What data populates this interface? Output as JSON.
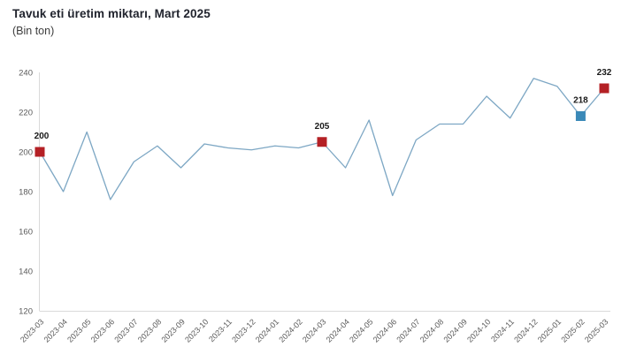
{
  "header": {
    "title": "Tavuk eti üretim miktarı, Mart 2025",
    "subtitle": "(Bin ton)"
  },
  "chart_data": {
    "type": "line",
    "title": "Tavuk eti üretim miktarı, Mart 2025",
    "unit_label": "(Bin ton)",
    "categories": [
      "2023-03",
      "2023-04",
      "2023-05",
      "2023-06",
      "2023-07",
      "2023-08",
      "2023-09",
      "2023-10",
      "2023-11",
      "2023-12",
      "2024-01",
      "2024-02",
      "2024-03",
      "2024-04",
      "2024-05",
      "2024-06",
      "2024-07",
      "2024-08",
      "2024-09",
      "2024-10",
      "2024-11",
      "2024-12",
      "2025-01",
      "2025-02",
      "2025-03"
    ],
    "values": [
      200,
      180,
      210,
      176,
      195,
      203,
      192,
      204,
      202,
      201,
      203,
      202,
      205,
      192,
      216,
      178,
      206,
      214,
      214,
      228,
      217,
      237,
      233,
      218,
      232
    ],
    "y_ticks": [
      120,
      140,
      160,
      180,
      200,
      220,
      240
    ],
    "ylim": [
      120,
      240
    ],
    "grid": false,
    "legend": "none",
    "line_color": "#7da7c4",
    "axis_color": "#d9d9d9",
    "tick_label_color": "#595959",
    "data_label_color": "#1a1a1a",
    "annotated_points": [
      {
        "category": "2023-03",
        "index": 0,
        "label": "200",
        "marker_color": "#b42025"
      },
      {
        "category": "2024-03",
        "index": 12,
        "label": "205",
        "marker_color": "#b42025"
      },
      {
        "category": "2025-02",
        "index": 23,
        "label": "218",
        "marker_color": "#3a89b8"
      },
      {
        "category": "2025-03",
        "index": 24,
        "label": "232",
        "marker_color": "#b42025"
      }
    ]
  }
}
